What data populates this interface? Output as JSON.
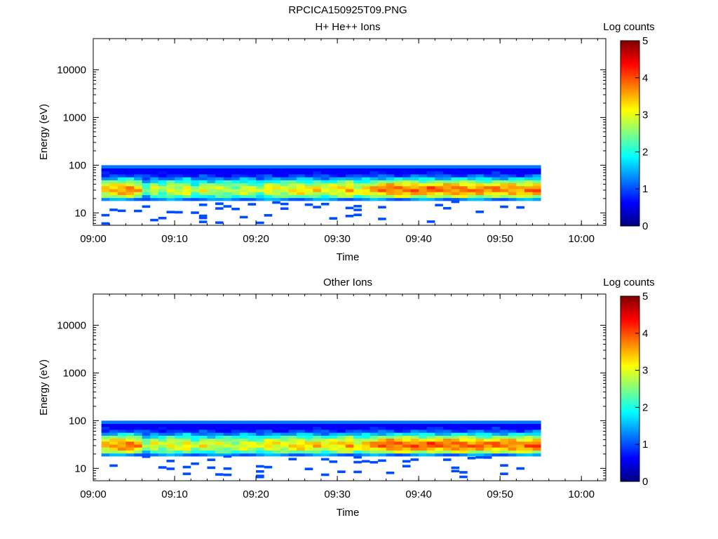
{
  "page_title": "RPCICA150925T09.PNG",
  "chart_data": [
    {
      "type": "heatmap",
      "title": "H+ He++ Ions",
      "xlabel": "Time",
      "ylabel": "Energy (eV)",
      "yscale": "log",
      "xlim": [
        "09:00",
        "10:03"
      ],
      "ylim": [
        5.5,
        45000
      ],
      "xticks": [
        "09:00",
        "09:10",
        "09:20",
        "09:30",
        "09:40",
        "09:50",
        "10:00"
      ],
      "yticks": [
        10,
        100,
        1000,
        10000
      ],
      "ytick_labels": [
        "10",
        "100",
        "1000",
        "10000"
      ],
      "time_bins": [
        "09:01",
        "09:54"
      ],
      "bin_minutes": 1,
      "energy_band_eV": [
        18,
        100
      ],
      "colorbar": {
        "label": "Log counts",
        "range": [
          0,
          5
        ],
        "ticks": [
          "0",
          "1",
          "2",
          "3",
          "4",
          "5"
        ],
        "colormap": "jet"
      },
      "column_peak_log_counts": [
        3.4,
        3.6,
        3.7,
        3.8,
        3.4,
        2.3,
        3.0,
        2.6,
        3.1,
        2.9,
        3.2,
        2.5,
        3.0,
        2.8,
        2.9,
        2.8,
        2.7,
        3.0,
        2.9,
        2.6,
        3.2,
        3.1,
        3.0,
        3.2,
        3.3,
        3.1,
        3.3,
        3.0,
        3.2,
        3.3,
        3.6,
        3.0,
        3.3,
        3.5,
        3.8,
        3.9,
        3.9,
        3.8,
        3.9,
        3.7,
        3.9,
        3.8,
        3.8,
        3.9,
        3.9,
        3.7,
        3.8,
        3.6,
        3.8,
        3.7,
        3.8,
        3.6,
        3.8,
        3.9
      ],
      "low_energy_sparse_counts": "isolated 1-count pixels between 6 and 18 eV"
    },
    {
      "type": "heatmap",
      "title": "Other Ions",
      "xlabel": "Time",
      "ylabel": "Energy (eV)",
      "yscale": "log",
      "xlim": [
        "09:00",
        "10:03"
      ],
      "ylim": [
        5.5,
        45000
      ],
      "xticks": [
        "09:00",
        "09:10",
        "09:20",
        "09:30",
        "09:40",
        "09:50",
        "10:00"
      ],
      "yticks": [
        10,
        100,
        1000,
        10000
      ],
      "ytick_labels": [
        "10",
        "100",
        "1000",
        "10000"
      ],
      "time_bins": [
        "09:01",
        "09:54"
      ],
      "bin_minutes": 1,
      "energy_band_eV": [
        18,
        100
      ],
      "colorbar": {
        "label": "Log counts",
        "range": [
          0,
          5
        ],
        "ticks": [
          "0",
          "1",
          "2",
          "3",
          "4",
          "5"
        ],
        "colormap": "jet"
      },
      "column_peak_log_counts": [
        3.5,
        3.7,
        3.8,
        3.9,
        3.6,
        2.6,
        3.1,
        2.8,
        3.2,
        3.0,
        3.3,
        2.7,
        3.1,
        2.9,
        3.0,
        2.9,
        2.8,
        3.1,
        3.0,
        2.8,
        3.3,
        3.2,
        3.1,
        3.3,
        3.4,
        3.2,
        3.4,
        3.1,
        3.3,
        3.4,
        3.7,
        3.1,
        3.4,
        3.6,
        3.9,
        4.0,
        4.0,
        3.9,
        4.0,
        3.8,
        4.0,
        3.9,
        3.9,
        4.0,
        4.0,
        3.8,
        3.9,
        3.7,
        3.9,
        3.8,
        3.9,
        3.7,
        3.9,
        4.0
      ],
      "low_energy_sparse_counts": "isolated 1-count pixels between 6 and 18 eV"
    }
  ]
}
